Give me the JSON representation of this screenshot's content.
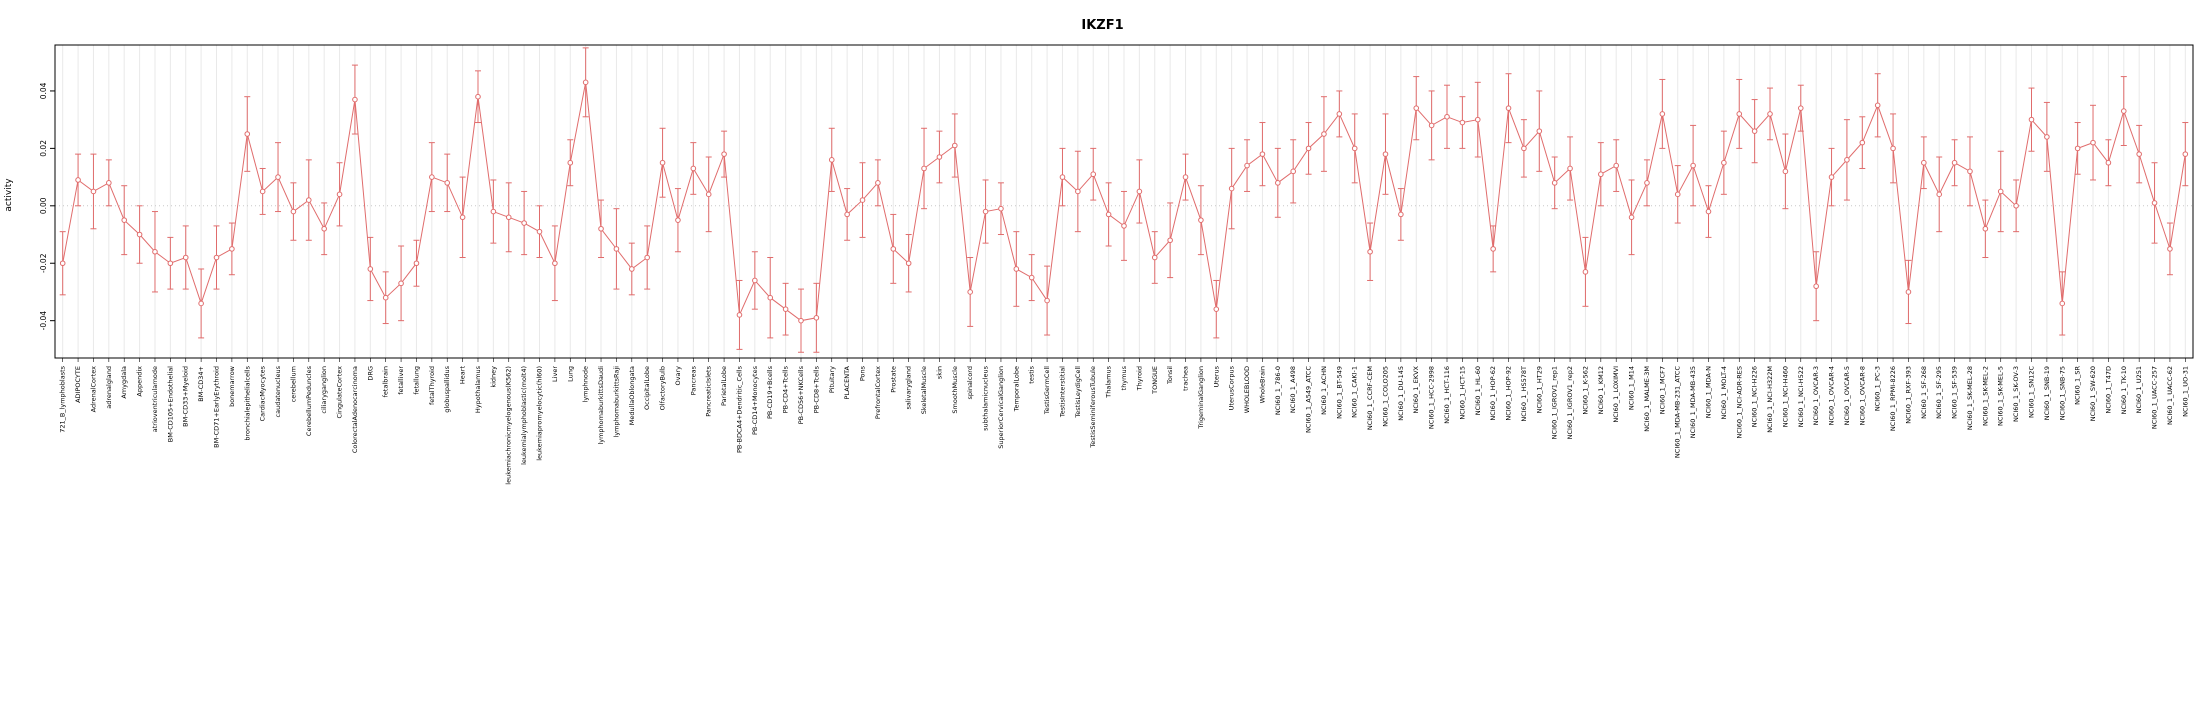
{
  "page": {
    "title": "IKZF1"
  },
  "chart_data": {
    "type": "line",
    "title": "IKZF1",
    "xlabel": "",
    "ylabel": "activity",
    "ylim": [
      -0.053,
      0.056
    ],
    "yticks": [
      -0.04,
      -0.02,
      0.0,
      0.02,
      0.04
    ],
    "grid": "vertical-line-per-category",
    "zero_line": "dotted",
    "legend_position": "none",
    "marker": "open-circle",
    "line_color": "#e06c6c",
    "grid_color": "#e9e9e9",
    "zero_line_color": "#c8c8c8",
    "frame_color": "#000000",
    "error_pattern": [
      0.011,
      0.009,
      0.013,
      0.008,
      0.012,
      0.01,
      0.014,
      0.009,
      0.011,
      0.012
    ],
    "categories": [
      "721_B_lymphoblasts",
      "ADIPOCYTE",
      "AdrenalCortex",
      "adrenalgland",
      "Amygdala",
      "Appendix",
      "atrioventricularnode",
      "BM-CD105+Endothelial",
      "BM-CD33+Myeloid",
      "BM-CD34+",
      "BM-CD71+EarlyErythroid",
      "bonemarrow",
      "bronchialepithelialcells",
      "CardiacMyocytes",
      "caudatenucleus",
      "cerebellum",
      "CerebellumPeduncles",
      "ciliaryganglion",
      "CingulateCortex",
      "ColorectalAdenocarcinoma",
      "DRG",
      "fetalbrain",
      "fetalliver",
      "fetallung",
      "fetalThyroid",
      "globuspallidus",
      "Heart",
      "Hypothalamus",
      "kidney",
      "leukemiachronicmyelogenous(K562)",
      "leukemialymphoblastic(molt4)",
      "leukemiapromyelocytic(hl60)",
      "Liver",
      "Lung",
      "lymphnode",
      "lymphomaburkittsDaudi",
      "lymphomaburkittsRaji",
      "MedullaOblongata",
      "OccipitalLobe",
      "OlfactoryBulb",
      "Ovary",
      "Pancreas",
      "PancreaticIslets",
      "ParietalLobe",
      "PB-BDCA4+Dendritic_Cells",
      "PB-CD14+Monocytes",
      "PB-CD19+Bcells",
      "PB-CD4+Tcells",
      "PB-CD56+NKCells",
      "PB-CD8+Tcells",
      "Pituitary",
      "PLACENTA",
      "Pons",
      "PrefrontalCortex",
      "Prostate",
      "salivarygland",
      "SkeletalMuscle",
      "skin",
      "SmoothMuscle",
      "spinalcord",
      "subthalamicnucleus",
      "SuperiorCervicalGanglion",
      "TemporalLobe",
      "testis",
      "TestisGermCell",
      "TestisInterstitial",
      "TestisLeydigCell",
      "TestisSeminiferousTubule",
      "Thalamus",
      "thymus",
      "Thyroid",
      "TONGUE",
      "Tonsil",
      "trachea",
      "TrigeminalGanglion",
      "Uterus",
      "UterusCorpus",
      "WHOLEBLOOD",
      "WholeBrain",
      "NCI60_1_786-0",
      "NCI60_1_A498",
      "NCI60_1_A549_ATCC",
      "NCI60_1_ACHN",
      "NCI60_1_BT-549",
      "NCI60_1_CAKI-1",
      "NCI60_1_CCRF-CEM",
      "NCI60_1_COLO205",
      "NCI60_1_DU-145",
      "NCI60_1_EKVX",
      "NCI60_1_HCC-2998",
      "NCI60_1_HCT-116",
      "NCI60_1_HCT-15",
      "NCI60_1_HL-60",
      "NCI60_1_HOP-62",
      "NCI60_1_HOP-92",
      "NCI60_1_HS578T",
      "NCI60_1_HT29",
      "NCI60_1_IGROV1_rep1",
      "NCI60_1_IGROV1_rep2",
      "NCI60_1_K-562",
      "NCI60_1_KM12",
      "NCI60_1_LOXIMVI",
      "NCI60_1_M14",
      "NCI60_1_MALME-3M",
      "NCI60_1_MCF7",
      "NCI60_1_MDA-MB-231_ATCC",
      "NCI60_1_MDA-MB-435",
      "NCI60_1_MDA-N",
      "NCI60_1_MOLT-4",
      "NCI60_1_NCI-ADR-RES",
      "NCI60_1_NCI-H226",
      "NCI60_1_NCI-H322M",
      "NCI60_1_NCI-H460",
      "NCI60_1_NCI-H522",
      "NCI60_1_OVCAR-3",
      "NCI60_1_OVCAR-4",
      "NCI60_1_OVCAR-5",
      "NCI60_1_OVCAR-8",
      "NCI60_1_PC-3",
      "NCI60_1_RPMI-8226",
      "NCI60_1_RXF-393",
      "NCI60_1_SF-268",
      "NCI60_1_SF-295",
      "NCI60_1_SF-539",
      "NCI60_1_SK-MEL-28",
      "NCI60_1_SK-MEL-2",
      "NCI60_1_SK-MEL-5",
      "NCI60_1_SK-OV-3",
      "NCI60_1_SN12C",
      "NCI60_1_SNB-19",
      "NCI60_1_SNB-75",
      "NCI60_1_SR",
      "NCI60_1_SW-620",
      "NCI60_1_T47D",
      "NCI60_1_TK-10",
      "NCI60_1_U251",
      "NCI60_1_UACC-257",
      "NCI60_1_UACC-62",
      "NCI60_1_UO-31"
    ],
    "values": [
      -0.02,
      0.009,
      0.005,
      0.008,
      -0.005,
      -0.01,
      -0.016,
      -0.02,
      -0.018,
      -0.034,
      -0.018,
      -0.015,
      0.025,
      0.005,
      0.01,
      -0.002,
      0.002,
      -0.008,
      0.004,
      0.037,
      -0.022,
      -0.032,
      -0.027,
      -0.02,
      0.01,
      0.008,
      -0.004,
      0.038,
      -0.002,
      -0.004,
      -0.006,
      -0.009,
      -0.02,
      0.015,
      0.043,
      -0.008,
      -0.015,
      -0.022,
      -0.018,
      0.015,
      -0.005,
      0.013,
      0.004,
      0.018,
      -0.038,
      -0.026,
      -0.032,
      -0.036,
      -0.04,
      -0.039,
      0.016,
      -0.003,
      0.002,
      0.008,
      -0.015,
      -0.02,
      0.013,
      0.017,
      0.021,
      -0.03,
      -0.002,
      -0.001,
      -0.022,
      -0.025,
      -0.033,
      0.01,
      0.005,
      0.011,
      -0.003,
      -0.007,
      0.005,
      -0.018,
      -0.012,
      0.01,
      -0.005,
      -0.036,
      0.006,
      0.014,
      0.018,
      0.008,
      0.012,
      0.02,
      0.025,
      0.032,
      0.02,
      -0.016,
      0.018,
      -0.003,
      0.034,
      0.028,
      0.031,
      0.029,
      0.03,
      -0.015,
      0.034,
      0.02,
      0.026,
      0.008,
      0.013,
      -0.023,
      0.011,
      0.014,
      -0.004,
      0.008,
      0.032,
      0.004,
      0.014,
      -0.002,
      0.015,
      0.032,
      0.026,
      0.032,
      0.012,
      0.034,
      -0.028,
      0.01,
      0.016,
      0.022,
      0.035,
      0.02,
      -0.03,
      0.015,
      0.004,
      0.015,
      0.012,
      -0.008,
      0.005,
      0.0,
      0.03,
      0.024,
      -0.034,
      0.02,
      0.022,
      0.015,
      0.033,
      0.018,
      0.001,
      -0.015,
      0.018
    ]
  }
}
